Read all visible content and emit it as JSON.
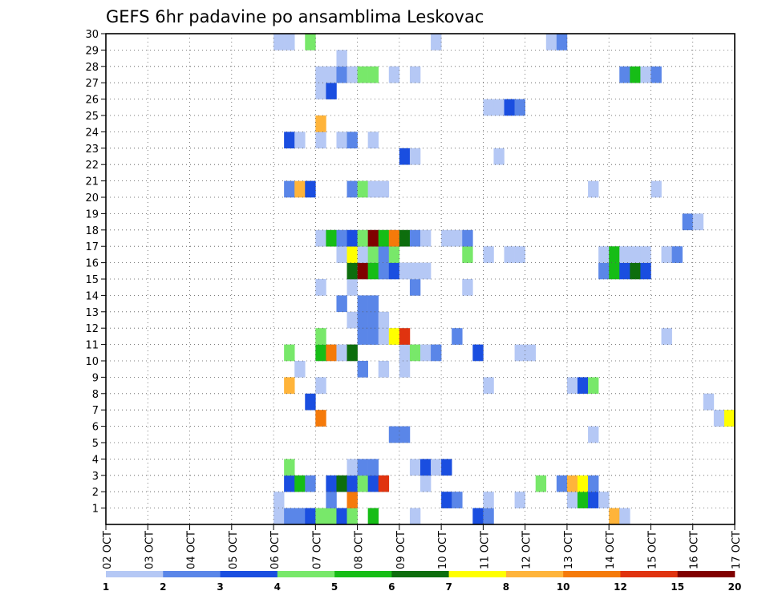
{
  "chart_data": {
    "type": "heatmap",
    "title": "GEFS 6hr padavine po ansamblima Leskovac",
    "xlabel": "",
    "ylabel": "",
    "x_ticks": [
      "02 OCT",
      "03 OCT",
      "04 OCT",
      "05 OCT",
      "06 OCT",
      "07 OCT",
      "08 OCT",
      "09 OCT",
      "10 OCT",
      "11 OCT",
      "12 OCT",
      "13 OCT",
      "14 OCT",
      "15 OCT",
      "16 OCT",
      "17 OCT"
    ],
    "x_range": [
      0,
      60
    ],
    "y_range": [
      0,
      30
    ],
    "y_ticks": [
      1,
      2,
      3,
      4,
      5,
      6,
      7,
      8,
      9,
      10,
      11,
      12,
      13,
      14,
      15,
      16,
      17,
      18,
      19,
      20,
      21,
      22,
      23,
      24,
      25,
      26,
      27,
      28,
      29,
      30
    ],
    "grid": true,
    "legend_position": "bottom",
    "colorbar": {
      "labels": [
        "1",
        "2",
        "3",
        "4",
        "5",
        "6",
        "7",
        "8",
        "10",
        "12",
        "15",
        "20"
      ],
      "colors": [
        "#b5c8f5",
        "#5a86e8",
        "#1a4ee0",
        "#78e86a",
        "#16bd16",
        "#0d6e0d",
        "#ffff00",
        "#ffb43a",
        "#f57a0a",
        "#e0330f",
        "#800000"
      ]
    },
    "cells": [
      [
        16,
        0,
        1
      ],
      [
        16,
        1,
        1
      ],
      [
        17,
        0,
        2
      ],
      [
        18,
        0,
        2
      ],
      [
        19,
        0,
        3
      ],
      [
        20,
        0,
        4
      ],
      [
        21,
        0,
        4
      ],
      [
        22,
        0,
        3
      ],
      [
        23,
        0,
        4
      ],
      [
        25,
        0,
        5
      ],
      [
        29,
        0,
        1
      ],
      [
        35,
        0,
        3
      ],
      [
        36,
        0,
        2
      ],
      [
        48,
        0,
        8
      ],
      [
        49,
        0,
        1
      ],
      [
        21,
        1,
        2
      ],
      [
        23,
        1,
        9
      ],
      [
        32,
        1,
        3
      ],
      [
        33,
        1,
        2
      ],
      [
        36,
        1,
        1
      ],
      [
        39,
        1,
        1
      ],
      [
        44,
        1,
        1
      ],
      [
        45,
        1,
        5
      ],
      [
        46,
        1,
        3
      ],
      [
        47,
        1,
        1
      ],
      [
        17,
        2,
        3
      ],
      [
        18,
        2,
        5
      ],
      [
        19,
        2,
        2
      ],
      [
        21,
        2,
        3
      ],
      [
        22,
        2,
        6
      ],
      [
        23,
        2,
        3
      ],
      [
        24,
        2,
        4
      ],
      [
        25,
        2,
        3
      ],
      [
        26,
        2,
        10
      ],
      [
        30,
        2,
        1
      ],
      [
        41,
        2,
        4
      ],
      [
        43,
        2,
        2
      ],
      [
        44,
        2,
        8
      ],
      [
        45,
        2,
        7
      ],
      [
        46,
        2,
        2
      ],
      [
        17,
        3,
        4
      ],
      [
        23,
        3,
        1
      ],
      [
        24,
        3,
        2
      ],
      [
        25,
        3,
        2
      ],
      [
        29,
        3,
        1
      ],
      [
        30,
        3,
        3
      ],
      [
        31,
        3,
        1
      ],
      [
        32,
        3,
        3
      ],
      [
        27,
        5,
        2
      ],
      [
        28,
        5,
        2
      ],
      [
        46,
        5,
        1
      ],
      [
        20,
        6,
        9
      ],
      [
        58,
        6,
        1
      ],
      [
        59,
        6,
        7
      ],
      [
        19,
        7,
        3
      ],
      [
        57,
        7,
        1
      ],
      [
        17,
        8,
        8
      ],
      [
        20,
        8,
        1
      ],
      [
        36,
        8,
        1
      ],
      [
        44,
        8,
        1
      ],
      [
        45,
        8,
        3
      ],
      [
        46,
        8,
        4
      ],
      [
        18,
        9,
        1
      ],
      [
        24,
        9,
        2
      ],
      [
        26,
        9,
        1
      ],
      [
        28,
        9,
        1
      ],
      [
        17,
        10,
        4
      ],
      [
        20,
        10,
        5
      ],
      [
        21,
        10,
        9
      ],
      [
        22,
        10,
        1
      ],
      [
        23,
        10,
        6
      ],
      [
        28,
        10,
        1
      ],
      [
        29,
        10,
        4
      ],
      [
        30,
        10,
        1
      ],
      [
        31,
        10,
        2
      ],
      [
        35,
        10,
        3
      ],
      [
        39,
        10,
        1
      ],
      [
        40,
        10,
        1
      ],
      [
        20,
        11,
        4
      ],
      [
        24,
        11,
        2
      ],
      [
        25,
        11,
        2
      ],
      [
        26,
        11,
        1
      ],
      [
        27,
        11,
        7
      ],
      [
        28,
        11,
        10
      ],
      [
        33,
        11,
        2
      ],
      [
        53,
        11,
        1
      ],
      [
        23,
        12,
        1
      ],
      [
        24,
        12,
        2
      ],
      [
        25,
        12,
        2
      ],
      [
        26,
        12,
        1
      ],
      [
        22,
        13,
        2
      ],
      [
        24,
        13,
        2
      ],
      [
        25,
        13,
        2
      ],
      [
        20,
        14,
        1
      ],
      [
        23,
        14,
        1
      ],
      [
        29,
        14,
        2
      ],
      [
        34,
        14,
        1
      ],
      [
        23,
        15,
        6
      ],
      [
        24,
        15,
        11
      ],
      [
        25,
        15,
        5
      ],
      [
        26,
        15,
        2
      ],
      [
        27,
        15,
        3
      ],
      [
        28,
        15,
        1
      ],
      [
        29,
        15,
        1
      ],
      [
        30,
        15,
        1
      ],
      [
        47,
        15,
        2
      ],
      [
        48,
        15,
        5
      ],
      [
        49,
        15,
        3
      ],
      [
        50,
        15,
        6
      ],
      [
        51,
        15,
        3
      ],
      [
        22,
        16,
        1
      ],
      [
        23,
        16,
        7
      ],
      [
        24,
        16,
        1
      ],
      [
        25,
        16,
        4
      ],
      [
        26,
        16,
        2
      ],
      [
        27,
        16,
        4
      ],
      [
        34,
        16,
        4
      ],
      [
        36,
        16,
        1
      ],
      [
        38,
        16,
        1
      ],
      [
        39,
        16,
        1
      ],
      [
        47,
        16,
        1
      ],
      [
        48,
        16,
        5
      ],
      [
        49,
        16,
        1
      ],
      [
        50,
        16,
        1
      ],
      [
        51,
        16,
        1
      ],
      [
        53,
        16,
        1
      ],
      [
        54,
        16,
        2
      ],
      [
        20,
        17,
        1
      ],
      [
        21,
        17,
        5
      ],
      [
        22,
        17,
        2
      ],
      [
        23,
        17,
        3
      ],
      [
        24,
        17,
        4
      ],
      [
        25,
        17,
        11
      ],
      [
        26,
        17,
        5
      ],
      [
        27,
        17,
        9
      ],
      [
        28,
        17,
        6
      ],
      [
        29,
        17,
        2
      ],
      [
        30,
        17,
        1
      ],
      [
        32,
        17,
        1
      ],
      [
        33,
        17,
        1
      ],
      [
        34,
        17,
        2
      ],
      [
        55,
        18,
        2
      ],
      [
        56,
        18,
        1
      ],
      [
        46,
        20,
        1
      ],
      [
        52,
        20,
        1
      ],
      [
        17,
        20,
        2
      ],
      [
        18,
        20,
        8
      ],
      [
        19,
        20,
        3
      ],
      [
        23,
        20,
        2
      ],
      [
        24,
        20,
        4
      ],
      [
        25,
        20,
        1
      ],
      [
        26,
        20,
        1
      ],
      [
        28,
        22,
        3
      ],
      [
        29,
        22,
        1
      ],
      [
        37,
        22,
        1
      ],
      [
        17,
        23,
        3
      ],
      [
        18,
        23,
        1
      ],
      [
        20,
        23,
        1
      ],
      [
        22,
        23,
        1
      ],
      [
        23,
        23,
        2
      ],
      [
        25,
        23,
        1
      ],
      [
        20,
        24,
        8
      ],
      [
        36,
        25,
        1
      ],
      [
        37,
        25,
        1
      ],
      [
        38,
        25,
        3
      ],
      [
        39,
        25,
        2
      ],
      [
        20,
        26,
        1
      ],
      [
        21,
        26,
        3
      ],
      [
        20,
        27,
        1
      ],
      [
        21,
        27,
        1
      ],
      [
        22,
        27,
        2
      ],
      [
        23,
        27,
        1
      ],
      [
        24,
        27,
        4
      ],
      [
        25,
        27,
        4
      ],
      [
        27,
        27,
        1
      ],
      [
        29,
        27,
        1
      ],
      [
        49,
        27,
        2
      ],
      [
        50,
        27,
        5
      ],
      [
        51,
        27,
        1
      ],
      [
        52,
        27,
        2
      ],
      [
        22,
        28,
        1
      ],
      [
        16,
        29,
        1
      ],
      [
        17,
        29,
        1
      ],
      [
        19,
        29,
        4
      ],
      [
        31,
        29,
        1
      ],
      [
        42,
        29,
        1
      ],
      [
        43,
        29,
        2
      ]
    ]
  }
}
